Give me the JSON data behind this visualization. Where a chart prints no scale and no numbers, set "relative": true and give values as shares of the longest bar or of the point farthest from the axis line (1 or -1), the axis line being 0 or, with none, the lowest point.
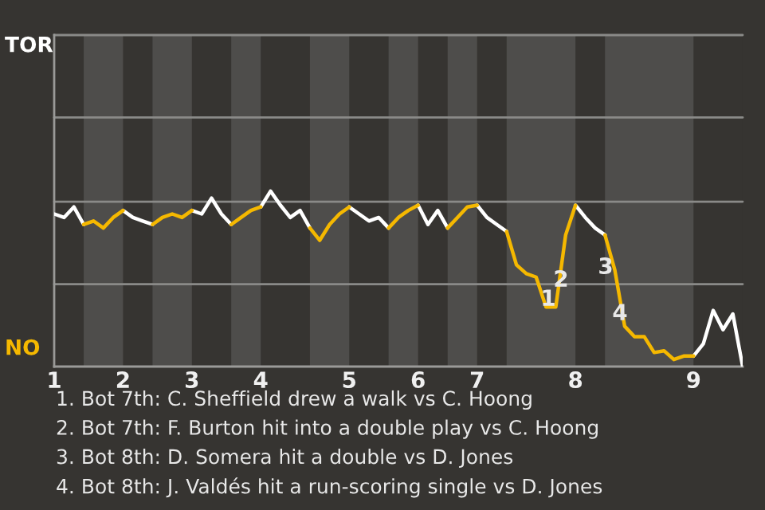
{
  "chart_data": {
    "type": "line",
    "relative": true,
    "categories": [
      "1",
      null,
      null,
      null,
      null,
      null,
      null,
      "2",
      null,
      null,
      null,
      null,
      null,
      null,
      "3",
      null,
      null,
      null,
      null,
      null,
      null,
      "4",
      null,
      null,
      null,
      null,
      null,
      null,
      null,
      null,
      "5",
      null,
      null,
      null,
      null,
      null,
      null,
      "6",
      null,
      null,
      null,
      null,
      null,
      "7",
      null,
      null,
      null,
      null,
      null,
      null,
      null,
      null,
      null,
      "8",
      null,
      null,
      null,
      null,
      null,
      null,
      null,
      null,
      null,
      null,
      null,
      "9",
      null,
      null,
      null,
      null,
      null
    ],
    "series": [
      {
        "color": "#ffffff",
        "values": [
          0.87,
          0.85,
          0.91,
          0.81,
          null,
          null,
          null,
          0.89,
          0.85,
          0.83,
          0.81,
          null,
          null,
          null,
          0.89,
          0.87,
          0.96,
          0.87,
          0.81,
          null,
          null,
          0.91,
          1,
          0.92,
          0.85,
          0.89,
          0.79,
          null,
          null,
          null,
          0.91,
          0.87,
          0.83,
          0.85,
          0.79,
          null,
          null,
          0.92,
          0.81,
          0.89,
          0.79,
          null,
          null,
          0.92,
          0.85,
          0.81,
          0.77,
          null,
          null,
          null,
          null,
          null,
          null,
          0.92,
          0.85,
          0.79,
          0.75,
          null,
          null,
          null,
          null,
          null,
          null,
          null,
          null,
          0.06,
          0.13,
          0.32,
          0.21,
          0.3,
          0
        ]
      },
      {
        "color": "#f5b800",
        "values": [
          null,
          null,
          null,
          0.81,
          0.83,
          0.79,
          0.85,
          0.89,
          null,
          null,
          0.81,
          0.85,
          0.87,
          0.85,
          0.89,
          null,
          null,
          null,
          0.81,
          0.85,
          0.89,
          0.91,
          null,
          null,
          null,
          null,
          0.79,
          0.72,
          0.81,
          0.87,
          0.91,
          null,
          null,
          null,
          0.79,
          0.85,
          0.89,
          0.92,
          null,
          null,
          0.79,
          0.85,
          0.91,
          0.92,
          null,
          null,
          0.77,
          0.58,
          0.53,
          0.51,
          0.34,
          0.34,
          0.75,
          0.92,
          null,
          null,
          0.75,
          0.55,
          0.23,
          0.17,
          0.17,
          0.08,
          0.09,
          0.04,
          0.06,
          0.06,
          null,
          null,
          null,
          null,
          null
        ]
      }
    ],
    "ref_lines": [
      {
        "axis": "y",
        "value": 0.47,
        "color": "#8a8a88"
      },
      {
        "axis": "y",
        "value": 0.94,
        "color": "#8a8a88"
      },
      {
        "axis": "y",
        "value": 1.42,
        "color": "#8a8a88"
      },
      {
        "axis": "y",
        "value": 1.89,
        "color": "#8a8a88"
      }
    ],
    "annotations": [
      "TOR",
      "NO",
      "1",
      "2",
      "3",
      "4",
      "1. Bot 7th: C. Sheffield drew a walk vs C. Hoong",
      "2. Bot 7th: F. Burton hit into a double play vs C. Hoong",
      "3. Bot 8th: D. Somera hit a double vs D. Jones",
      "4. Bot 8th: J. Valdés hit a run-scoring single vs D. Jones"
    ]
  }
}
